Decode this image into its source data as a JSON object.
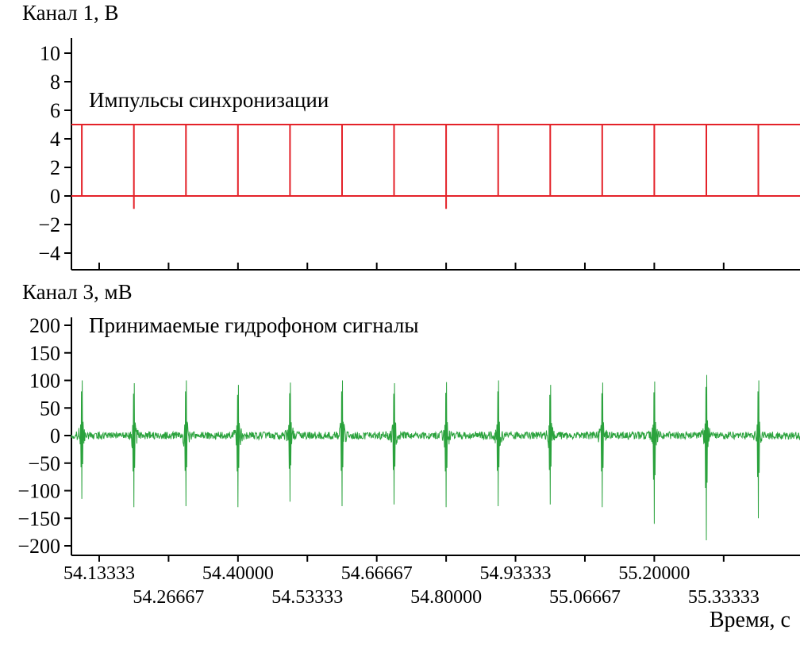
{
  "figure": {
    "xlabel": "Время, с",
    "background_color": "#ffffff",
    "axis_color": "#000000"
  },
  "chart_data": [
    {
      "type": "line",
      "panel": "top",
      "title": "Канал 1, В",
      "annotation": "Импульсы синхронизации",
      "line_color": "#e42229",
      "xlim": [
        54.08,
        55.48
      ],
      "ylim": [
        -5.2,
        11
      ],
      "yticks": [
        10,
        8,
        6,
        4,
        2,
        0,
        -2,
        -4
      ],
      "xtick_labels_visible": false,
      "signal": {
        "kind": "sync_pulse_train",
        "low_level_V": 0,
        "high_level_V": 5,
        "pulse_period_s": 0.1,
        "pulse_times_s": [
          54.1,
          54.2,
          54.3,
          54.4,
          54.5,
          54.6,
          54.7,
          54.8,
          54.9,
          55.0,
          55.1,
          55.2,
          55.3,
          55.4
        ],
        "undershoot": {
          "times_s": [
            54.2,
            54.8
          ],
          "depth_V": -0.9
        }
      }
    },
    {
      "type": "line",
      "panel": "bottom",
      "title": "Канал 3, мВ",
      "annotation": "Принимаемые гидрофоном сигналы",
      "line_color": "#2aa23c",
      "xlim": [
        54.08,
        55.48
      ],
      "ylim": [
        -217,
        214
      ],
      "yticks": [
        200,
        150,
        100,
        50,
        0,
        -50,
        -100,
        -150,
        -200
      ],
      "xticks": [
        "54.13333",
        "54.26667",
        "54.40000",
        "54.53333",
        "54.66667",
        "54.80000",
        "54.93333",
        "55.06667",
        "55.20000",
        "55.33333"
      ],
      "xtick_rows": [
        1,
        2,
        1,
        2,
        1,
        2,
        1,
        2,
        1,
        2
      ],
      "signal": {
        "kind": "hydrophone_burst_train",
        "noise_amplitude_mV": 7,
        "burst_times_s": [
          54.1,
          54.2,
          54.3,
          54.4,
          54.5,
          54.6,
          54.7,
          54.8,
          54.9,
          55.0,
          55.1,
          55.2,
          55.3,
          55.4
        ],
        "burst_pos_peaks_mV": [
          100,
          95,
          100,
          92,
          96,
          100,
          95,
          97,
          100,
          92,
          96,
          98,
          110,
          100
        ],
        "burst_neg_peaks_mV": [
          -115,
          -130,
          -128,
          -130,
          -120,
          -128,
          -125,
          -130,
          -128,
          -125,
          -130,
          -160,
          -190,
          -150
        ]
      }
    }
  ]
}
